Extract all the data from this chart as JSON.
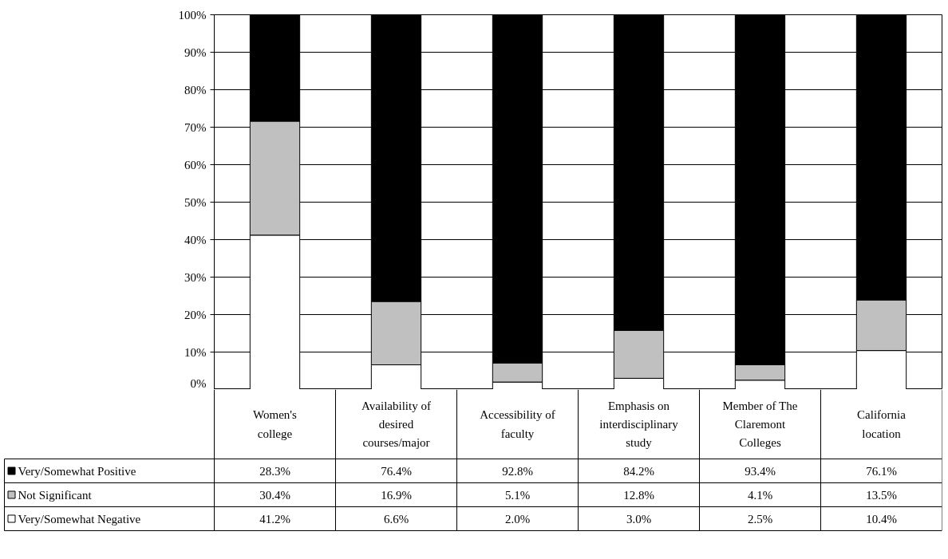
{
  "chart_data": {
    "type": "bar",
    "stacked": true,
    "categories": [
      "Women's\ncollege",
      "Availability of\ndesired\ncourses/major",
      "Accessibility of\nfaculty",
      "Emphasis on\ninterdisciplinary\nstudy",
      "Member of The\nClaremont\nColleges",
      "California\nlocation"
    ],
    "series": [
      {
        "name": "Very/Somewhat Negative",
        "color": "#ffffff",
        "values": [
          41.2,
          6.6,
          2.0,
          3.0,
          2.5,
          10.4
        ],
        "value_labels": [
          "41.2%",
          "6.6%",
          "2.0%",
          "3.0%",
          "2.5%",
          "10.4%"
        ]
      },
      {
        "name": "Not Significant",
        "color": "#c0c0c0",
        "values": [
          30.4,
          16.9,
          5.1,
          12.8,
          4.1,
          13.5
        ],
        "value_labels": [
          "30.4%",
          "16.9%",
          "5.1%",
          "12.8%",
          "4.1%",
          "13.5%"
        ]
      },
      {
        "name": "Very/Somewhat Positive",
        "color": "#000000",
        "values": [
          28.3,
          76.4,
          92.8,
          84.2,
          93.4,
          76.1
        ],
        "value_labels": [
          "28.3%",
          "76.4%",
          "92.8%",
          "84.2%",
          "93.4%",
          "76.1%"
        ]
      }
    ],
    "ylim": [
      0,
      100
    ],
    "yticks": [
      {
        "value": 0,
        "label": "0%"
      },
      {
        "value": 10,
        "label": "10%"
      },
      {
        "value": 20,
        "label": "20%"
      },
      {
        "value": 30,
        "label": "30%"
      },
      {
        "value": 40,
        "label": "40%"
      },
      {
        "value": 50,
        "label": "50%"
      },
      {
        "value": 60,
        "label": "60%"
      },
      {
        "value": 70,
        "label": "70%"
      },
      {
        "value": 80,
        "label": "80%"
      },
      {
        "value": 90,
        "label": "90%"
      },
      {
        "value": 100,
        "label": "100%"
      }
    ],
    "grid": "y",
    "legend": "bottom left"
  }
}
